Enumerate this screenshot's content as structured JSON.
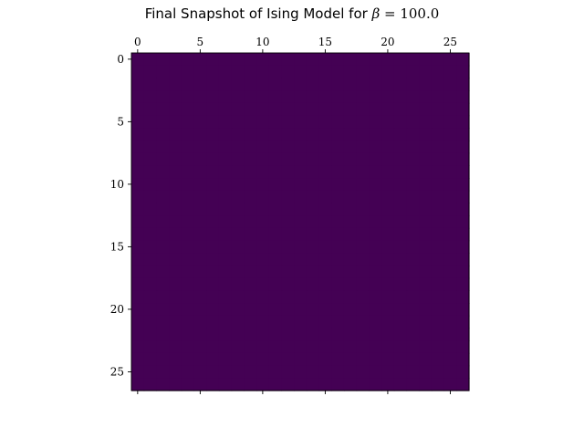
{
  "chart_data": {
    "type": "heatmap",
    "title": {
      "prefix": "Final Snapshot of Ising Model for ",
      "symbol": "β",
      "equals": " = ",
      "value": "100.0"
    },
    "xlabel": "",
    "ylabel": "",
    "grid_size": 27,
    "xlim": [
      -0.5,
      26.5
    ],
    "ylim": [
      26.5,
      -0.5
    ],
    "x_ticks": [
      0,
      5,
      10,
      15,
      20,
      25
    ],
    "y_ticks": [
      0,
      5,
      10,
      15,
      20,
      25
    ],
    "x_tick_labels": [
      "0",
      "5",
      "10",
      "15",
      "20",
      "25"
    ],
    "y_tick_labels": [
      "0",
      "5",
      "10",
      "15",
      "20",
      "25"
    ],
    "x_axis_position": "top",
    "grid": false,
    "colormap": "viridis",
    "cell_value": -1,
    "cell_color": "#440154",
    "description_of_values": "all 27x27 spins equal (uniform field)"
  }
}
